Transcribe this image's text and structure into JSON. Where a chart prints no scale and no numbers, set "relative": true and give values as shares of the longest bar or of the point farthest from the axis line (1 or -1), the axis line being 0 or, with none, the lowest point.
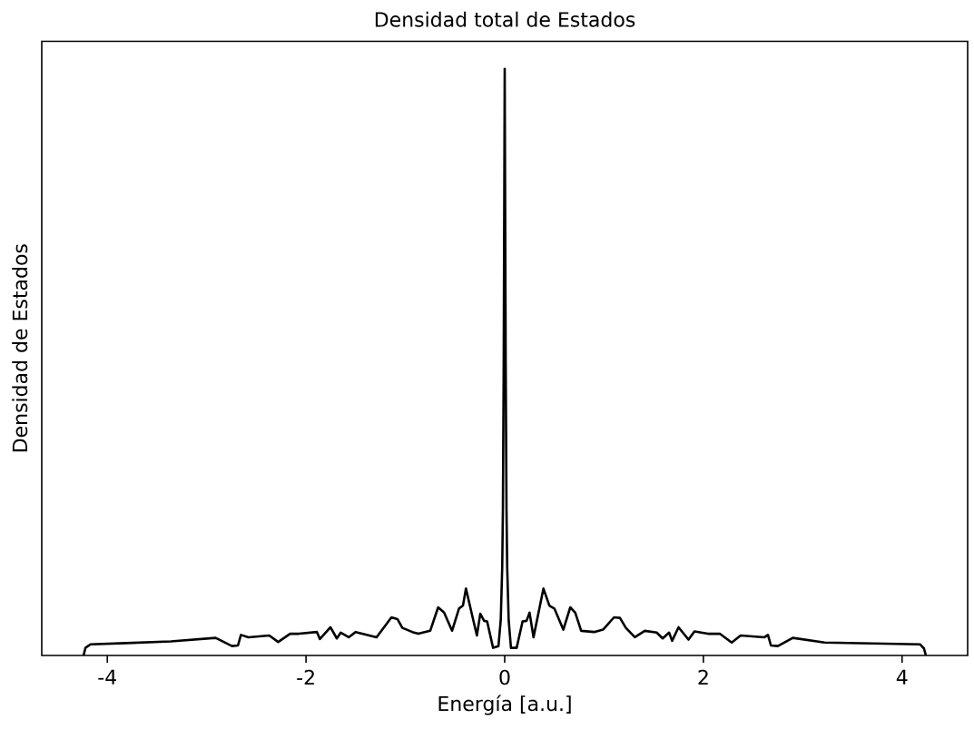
{
  "chart_data": {
    "type": "line",
    "title": "Densidad total de Estados",
    "xlabel": "Energía [a.u.]",
    "ylabel": "Densidad de Estados",
    "relative": true,
    "color": "#000000",
    "xlim": [
      -4.66,
      4.66
    ],
    "xticks": [
      -4,
      -2,
      0,
      2,
      4
    ],
    "x": [
      -4.24,
      -4.22,
      -4.17,
      -3.81,
      -3.36,
      -2.91,
      -2.85,
      -2.745,
      -2.685,
      -2.655,
      -2.58,
      -2.37,
      -2.28,
      -2.16,
      -2.07,
      -1.89,
      -1.86,
      -1.754,
      -1.69,
      -1.65,
      -1.57,
      -1.5,
      -1.29,
      -1.14,
      -1.08,
      -1.03,
      -0.93,
      -0.87,
      -0.75,
      -0.67,
      -0.61,
      -0.53,
      -0.46,
      -0.42,
      -0.39,
      -0.33,
      -0.28,
      -0.246,
      -0.207,
      -0.177,
      -0.117,
      -0.063,
      -0.04,
      -0.025,
      -0.018,
      -0.01,
      0,
      0.01,
      0.018,
      0.025,
      0.04,
      0.063,
      0.12,
      0.18,
      0.22,
      0.25,
      0.29,
      0.39,
      0.45,
      0.5,
      0.59,
      0.66,
      0.71,
      0.77,
      0.9,
      0.99,
      1.1,
      1.16,
      1.22,
      1.31,
      1.41,
      1.53,
      1.59,
      1.655,
      1.685,
      1.75,
      1.85,
      1.91,
      2.045,
      2.165,
      2.285,
      2.375,
      2.615,
      2.65,
      2.68,
      2.75,
      2.9,
      3.22,
      3.82,
      4.18,
      4.22,
      4.24
    ],
    "values": [
      0,
      0.013,
      0.019,
      0.021,
      0.024,
      0.03,
      0.025,
      0.016,
      0.017,
      0.035,
      0.031,
      0.034,
      0.023,
      0.037,
      0.037,
      0.04,
      0.028,
      0.048,
      0.029,
      0.039,
      0.031,
      0.04,
      0.031,
      0.065,
      0.062,
      0.047,
      0.04,
      0.037,
      0.042,
      0.082,
      0.073,
      0.042,
      0.08,
      0.085,
      0.114,
      0.07,
      0.034,
      0.071,
      0.059,
      0.058,
      0.013,
      0.016,
      0.06,
      0.15,
      0.25,
      0.5,
      1,
      0.5,
      0.25,
      0.15,
      0.06,
      0.013,
      0.013,
      0.058,
      0.059,
      0.073,
      0.031,
      0.114,
      0.085,
      0.08,
      0.044,
      0.082,
      0.073,
      0.042,
      0.04,
      0.044,
      0.065,
      0.064,
      0.047,
      0.031,
      0.042,
      0.039,
      0.029,
      0.039,
      0.025,
      0.048,
      0.027,
      0.041,
      0.037,
      0.037,
      0.022,
      0.034,
      0.031,
      0.035,
      0.017,
      0.016,
      0.03,
      0.022,
      0.02,
      0.019,
      0.012,
      0
    ]
  }
}
